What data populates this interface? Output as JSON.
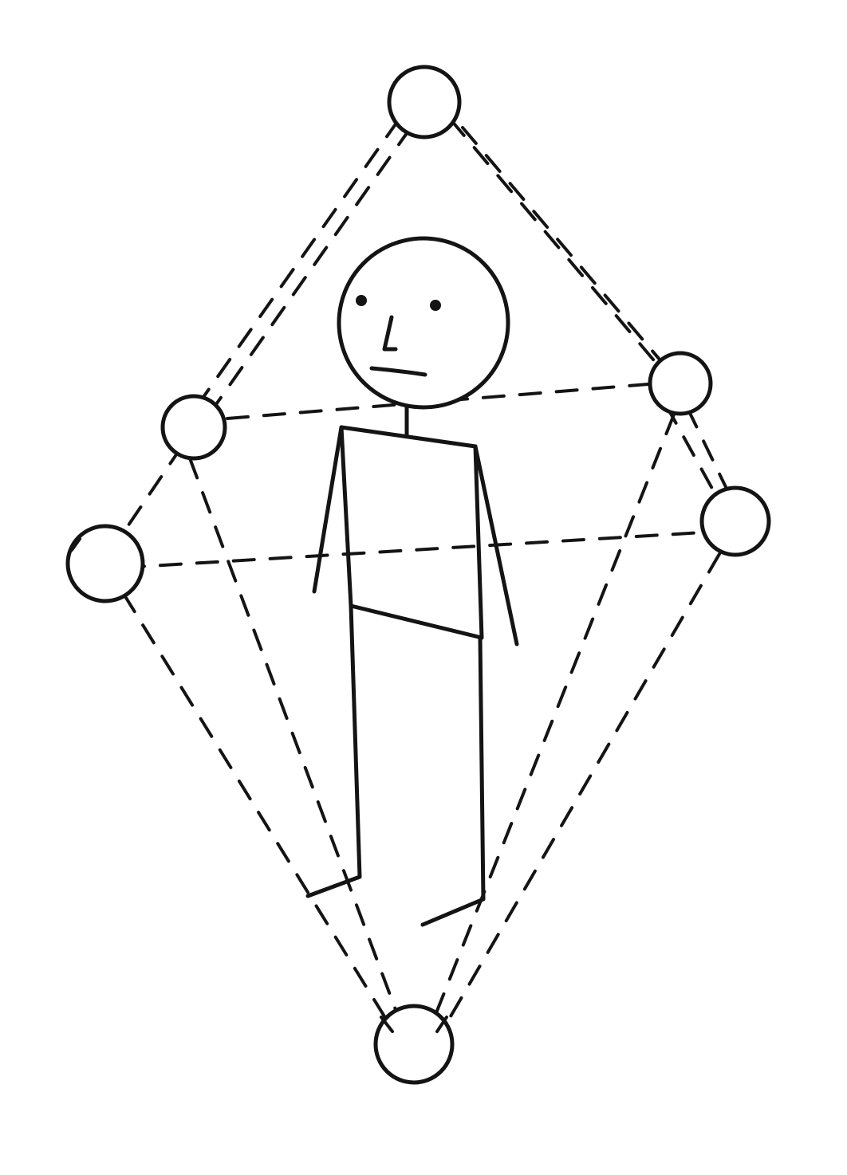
{
  "diagram": {
    "style": "hand-drawn ink sketch",
    "ink_color": "#141414",
    "background_color": "#ffffff",
    "subject": "stick-figure",
    "nodes": [
      {
        "id": "top"
      },
      {
        "id": "upper-left"
      },
      {
        "id": "lower-left"
      },
      {
        "id": "upper-right"
      },
      {
        "id": "lower-right"
      },
      {
        "id": "bottom"
      }
    ],
    "edges": [
      {
        "from": "top",
        "to": "upper-left"
      },
      {
        "from": "top",
        "to": "upper-right"
      },
      {
        "from": "upper-left",
        "to": "upper-right"
      },
      {
        "from": "upper-left",
        "to": "lower-left"
      },
      {
        "from": "lower-left",
        "to": "lower-right"
      },
      {
        "from": "upper-right",
        "to": "lower-right"
      },
      {
        "from": "lower-left",
        "to": "bottom"
      },
      {
        "from": "upper-left",
        "to": "bottom"
      },
      {
        "from": "upper-right",
        "to": "bottom"
      },
      {
        "from": "lower-right",
        "to": "bottom"
      }
    ]
  }
}
